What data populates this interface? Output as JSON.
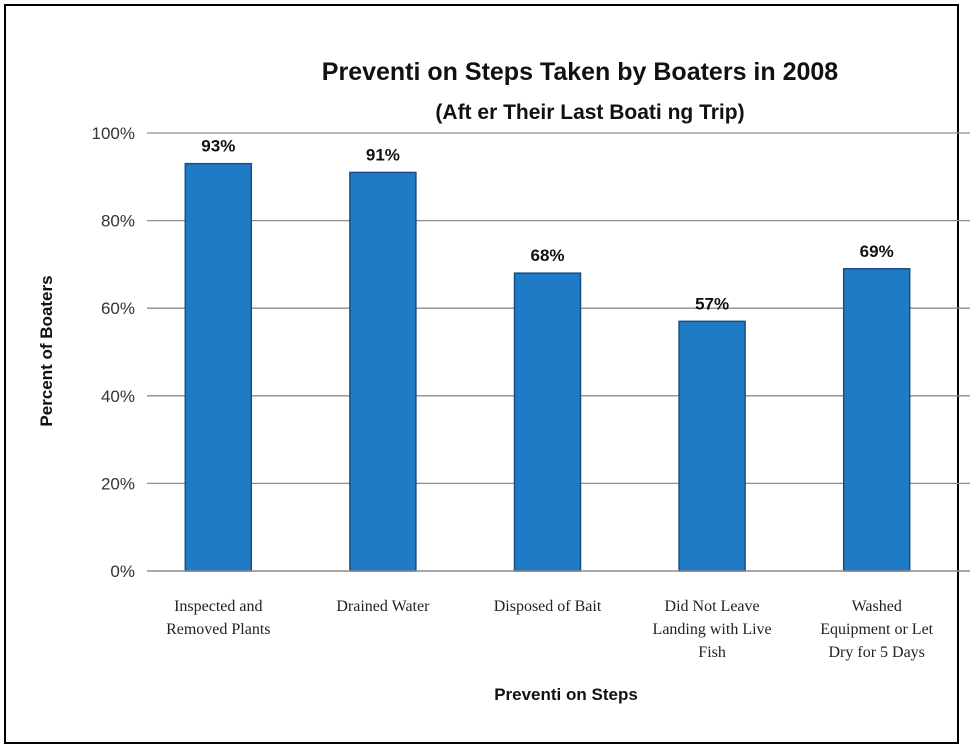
{
  "chart_data": {
    "type": "bar",
    "title": "Preventi   on Steps Taken by Boaters in 2008",
    "subtitle": "(Aft    er Their Last Boati   ng Trip)",
    "xlabel": "Preventi   on Steps",
    "ylabel": "Percent of Boaters",
    "categories": [
      [
        "Inspected and",
        "Removed Plants"
      ],
      [
        "Drained Water"
      ],
      [
        "Disposed of Bait"
      ],
      [
        "Did Not Leave",
        "Landing with Live",
        "Fish"
      ],
      [
        "Washed",
        "Equipment or Let",
        "Dry for 5 Days"
      ]
    ],
    "values": [
      93,
      91,
      68,
      57,
      69
    ],
    "data_labels": [
      "93%",
      "91%",
      "68%",
      "57%",
      "69%"
    ],
    "ylim": [
      0,
      100
    ],
    "yticks": [
      0,
      20,
      40,
      60,
      80,
      100
    ],
    "ytick_labels": [
      "0%",
      "20%",
      "40%",
      "60%",
      "80%",
      "100%"
    ],
    "grid": true,
    "legend": "none",
    "bar_color": "#1f7bc6",
    "bar_edge_color": "#1a4e80"
  }
}
